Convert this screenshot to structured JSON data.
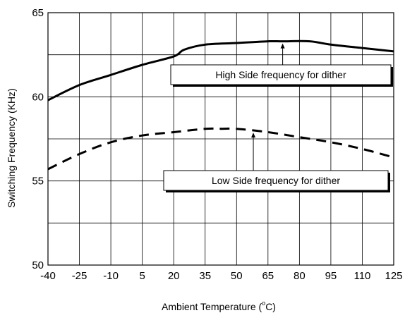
{
  "chart_data": {
    "type": "line",
    "title": "",
    "xlabel": "Ambient Temperature (",
    "xlabel_unit_sup": "o",
    "xlabel_unit": "C)",
    "ylabel": "Switching Frequency (KHz)",
    "xlim": [
      -40,
      125
    ],
    "ylim": [
      50,
      65
    ],
    "x_ticks": [
      -40,
      -25,
      -10,
      5,
      20,
      35,
      50,
      65,
      80,
      95,
      110,
      125
    ],
    "y_ticks": [
      50,
      55,
      60,
      65
    ],
    "x_tick_labels": [
      "-40",
      "-25",
      "-10",
      "5",
      "20",
      "35",
      "50",
      "65",
      "80",
      "95",
      "110",
      "125"
    ],
    "y_tick_labels": [
      "50",
      "55",
      "60",
      "65"
    ],
    "y_grid_lines": [
      52.5,
      55,
      57.5,
      60,
      62.5
    ],
    "grid": true,
    "legend": "none",
    "series": [
      {
        "style": "solid",
        "color": "#000000",
        "x": [
          -40,
          -25,
          -10,
          5,
          20,
          25,
          35,
          50,
          65,
          72,
          85,
          95,
          110,
          125
        ],
        "y": [
          59.8,
          60.7,
          61.3,
          61.9,
          62.4,
          62.8,
          63.1,
          63.2,
          63.3,
          63.3,
          63.3,
          63.1,
          62.9,
          62.7
        ]
      },
      {
        "style": "dashed",
        "color": "#000000",
        "x": [
          -40,
          -25,
          -10,
          5,
          20,
          35,
          43,
          50,
          65,
          80,
          95,
          110,
          125
        ],
        "y": [
          55.7,
          56.6,
          57.3,
          57.7,
          57.9,
          58.1,
          58.1,
          58.1,
          57.9,
          57.6,
          57.3,
          56.9,
          56.4
        ]
      }
    ],
    "annotations": [
      {
        "text": "High Side frequency for dither",
        "arrow_x": 72,
        "arrow_y": 63.3
      },
      {
        "text": "Low Side frequency for dither",
        "arrow_x": 58,
        "arrow_y": 58.0
      }
    ]
  }
}
